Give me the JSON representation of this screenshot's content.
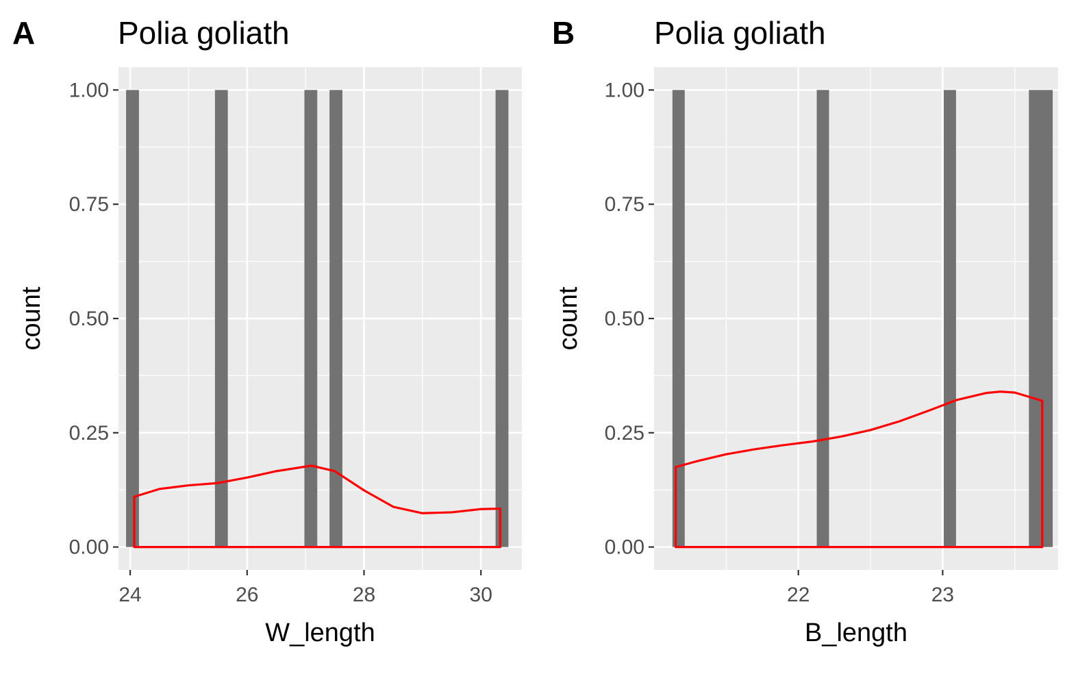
{
  "chart_data": [
    {
      "panel_tag": "A",
      "type": "bar",
      "title": "Polia goliath",
      "xlabel": "W_length",
      "ylabel": "count",
      "xlim": [
        23.8,
        30.7
      ],
      "ylim": [
        -0.05,
        1.05
      ],
      "x_ticks": [
        "24",
        "26",
        "28",
        "30"
      ],
      "x_tick_values": [
        24,
        26,
        28,
        30
      ],
      "y_ticks": [
        "0.00",
        "0.25",
        "0.50",
        "0.75",
        "1.00"
      ],
      "y_tick_values": [
        0,
        0.25,
        0.5,
        0.75,
        1.0
      ],
      "grid": true,
      "bars": {
        "bin_width": 0.22,
        "x": [
          24.04,
          25.56,
          27.09,
          27.52,
          30.36
        ],
        "counts": [
          1,
          1,
          1,
          1,
          1
        ]
      },
      "density": {
        "x": [
          24.07,
          24.5,
          25.0,
          25.5,
          26.0,
          26.5,
          27.1,
          27.5,
          28.0,
          28.5,
          29.0,
          29.5,
          30.0,
          30.33
        ],
        "y": [
          0.11,
          0.127,
          0.135,
          0.14,
          0.152,
          0.166,
          0.178,
          0.166,
          0.124,
          0.088,
          0.074,
          0.076,
          0.083,
          0.084
        ]
      },
      "colors": {
        "bar": "#727272",
        "density": "#ff0000",
        "panel": "#ebebeb",
        "grid": "#ffffff"
      }
    },
    {
      "panel_tag": "B",
      "type": "bar",
      "title": "Polia goliath",
      "xlabel": "B_length",
      "ylabel": "count",
      "xlim": [
        21.0,
        23.8
      ],
      "ylim": [
        -0.05,
        1.05
      ],
      "x_ticks": [
        "22",
        "23"
      ],
      "x_tick_values": [
        22,
        23
      ],
      "y_ticks": [
        "0.00",
        "0.25",
        "0.50",
        "0.75",
        "1.00"
      ],
      "y_tick_values": [
        0,
        0.25,
        0.5,
        0.75,
        1.0
      ],
      "grid": true,
      "bars": {
        "bin_width": 0.085,
        "x": [
          21.17,
          22.17,
          23.05,
          23.64,
          23.72
        ],
        "counts": [
          1,
          1,
          1,
          1,
          1
        ]
      },
      "density": {
        "x": [
          21.15,
          21.3,
          21.5,
          21.7,
          21.9,
          22.1,
          22.3,
          22.5,
          22.7,
          22.9,
          23.1,
          23.3,
          23.4,
          23.5,
          23.69
        ],
        "y": [
          0.175,
          0.188,
          0.203,
          0.214,
          0.223,
          0.231,
          0.242,
          0.256,
          0.275,
          0.298,
          0.322,
          0.337,
          0.34,
          0.338,
          0.32
        ]
      },
      "colors": {
        "bar": "#727272",
        "density": "#ff0000",
        "panel": "#ebebeb",
        "grid": "#ffffff"
      }
    }
  ]
}
